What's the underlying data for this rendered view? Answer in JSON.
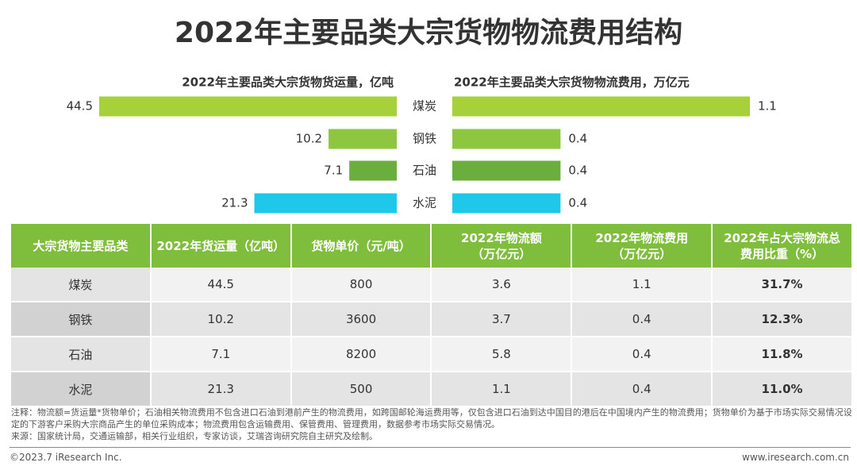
{
  "title": "2022年主要品类大宗货物物流费用结构",
  "chart_data": {
    "type": "butterfly",
    "categories": [
      "煤炭",
      "钢铁",
      "石油",
      "水泥"
    ],
    "series": [
      {
        "name": "2022年主要品类大宗货物货运量，亿吨",
        "values": [
          44.5,
          10.2,
          7.1,
          21.3
        ],
        "colors": [
          "#a6d13a",
          "#8dc63f",
          "#6aae3e",
          "#1ec8e8"
        ]
      },
      {
        "name": "2022年主要品类大宗货物物流费用，万亿元",
        "values": [
          1.1,
          0.4,
          0.4,
          0.4
        ],
        "colors": [
          "#a6d13a",
          "#8dc63f",
          "#6aae3e",
          "#1ec8e8"
        ]
      }
    ]
  },
  "table": {
    "header": [
      "大宗货物主要品类",
      "2022年货运量（亿吨）",
      "货物单价（元/吨）",
      "2022年物流额\n（万亿元）",
      "2022年物流费用\n（万亿元）",
      "2022年占大宗物流总\n费用比重（%）"
    ],
    "rows": [
      [
        "煤炭",
        "44.5",
        "800",
        "3.6",
        "1.1",
        "31.7%"
      ],
      [
        "钢铁",
        "10.2",
        "3600",
        "3.7",
        "0.4",
        "12.3%"
      ],
      [
        "石油",
        "7.1",
        "8200",
        "5.8",
        "0.4",
        "11.8%"
      ],
      [
        "水泥",
        "21.3",
        "500",
        "1.1",
        "0.4",
        "11.0%"
      ]
    ]
  },
  "notes": [
    "注释：物流额=货运量*货物单价；石油相关物流费用不包含进口石油到港前产生的物流费用，如跨国邮轮海运费用等，仅包含进口石油到达中国目的港后在中国境内产生的物流费用；货物单价为基于市场实际交易情况设定的下游客户采购大宗商品产生的单位采购成本；物流费用包含运输费用、保管费用、管理费用，数据参考市场实际交易情况。",
    "来源：国家统计局，交通运输部，相关行业组织，专家访谈，艾瑞咨询研究院自主研究及绘制。"
  ],
  "footer": {
    "left": "©2023.7 iResearch Inc.",
    "right": "www.iresearch.com.cn"
  }
}
